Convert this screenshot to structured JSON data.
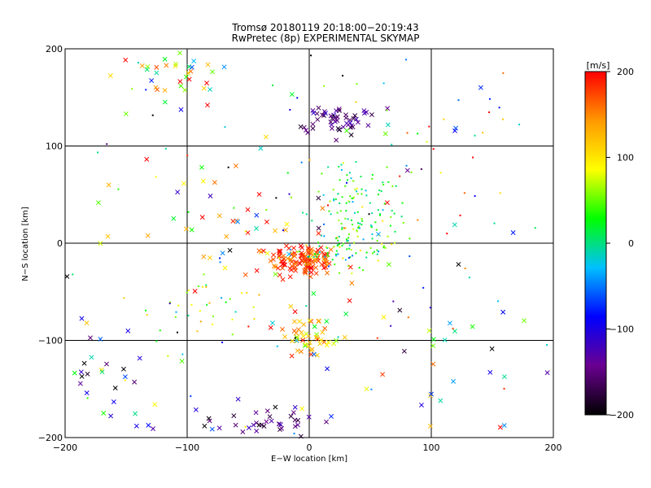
{
  "chart_data": {
    "type": "scatter",
    "title": [
      "Tromsø 20180119 20:18:00−20:19:43",
      "RwPretec (8p) EXPERIMENTAL SKYMAP"
    ],
    "xlabel": "E−W location [km]",
    "ylabel": "N−S location [km]",
    "xlim": [
      -200,
      200
    ],
    "ylim": [
      -200,
      200
    ],
    "xticks": [
      -200,
      -100,
      0,
      100,
      200
    ],
    "yticks": [
      -200,
      -100,
      0,
      100,
      200
    ],
    "xtick_labels": [
      "−200",
      "−100",
      "0",
      "100",
      "200"
    ],
    "ytick_labels": [
      "−200",
      "−100",
      "0",
      "100",
      "200"
    ],
    "grid": true,
    "color_by": "velocity",
    "colorbar": {
      "label": "[m/s]",
      "range": [
        -200,
        200
      ],
      "ticks": [
        -200,
        -100,
        0,
        100,
        200
      ],
      "tick_labels": [
        "−200",
        "−100",
        "0",
        "100",
        "200"
      ],
      "colors": [
        "#000000",
        "#6a0090",
        "#0000ff",
        "#00c0ff",
        "#00ff00",
        "#ffff00",
        "#ff9900",
        "#ff0000"
      ]
    },
    "marker_types": [
      "cross",
      "dot"
    ],
    "clusters": [
      {
        "center": [
          -5,
          -18
        ],
        "spread": [
          14,
          9
        ],
        "count": 130,
        "v_mean": 180,
        "v_spread": 30,
        "marker": "cross"
      },
      {
        "center": [
          30,
          -5
        ],
        "spread": [
          22,
          12
        ],
        "count": 90,
        "v_mean": 30,
        "v_spread": 40,
        "marker": "dot"
      },
      {
        "center": [
          40,
          40
        ],
        "spread": [
          20,
          22
        ],
        "count": 110,
        "v_mean": 20,
        "v_spread": 30,
        "marker": "dot"
      },
      {
        "center": [
          22,
          128
        ],
        "spread": [
          14,
          8
        ],
        "count": 55,
        "v_mean": -150,
        "v_spread": 20,
        "marker": "cross"
      },
      {
        "center": [
          0,
          -95
        ],
        "spread": [
          10,
          10
        ],
        "count": 50,
        "v_mean": 120,
        "v_spread": 40,
        "marker": "cross"
      },
      {
        "center": [
          -40,
          -185
        ],
        "spread": [
          22,
          12
        ],
        "count": 40,
        "v_mean": -160,
        "v_spread": 30,
        "marker": "cross"
      },
      {
        "center": [
          -110,
          175
        ],
        "spread": [
          25,
          18
        ],
        "count": 40,
        "v_mean": 100,
        "v_spread": 100,
        "marker": "cross"
      },
      {
        "center": [
          -90,
          -65
        ],
        "spread": [
          20,
          20
        ],
        "count": 35,
        "v_mean": 50,
        "v_spread": 60,
        "marker": "dot"
      },
      {
        "center": [
          -60,
          15
        ],
        "spread": [
          40,
          40
        ],
        "count": 35,
        "v_mean": 120,
        "v_spread": 80,
        "marker": "cross"
      },
      {
        "center": [
          -160,
          -130
        ],
        "spread": [
          25,
          30
        ],
        "count": 30,
        "v_mean": -80,
        "v_spread": 100,
        "marker": "cross"
      },
      {
        "center": [
          120,
          120
        ],
        "spread": [
          50,
          40
        ],
        "count": 20,
        "v_mean": 100,
        "v_spread": 100,
        "marker": "dot"
      },
      {
        "center": [
          110,
          -100
        ],
        "spread": [
          50,
          50
        ],
        "count": 20,
        "v_mean": -50,
        "v_spread": 120,
        "marker": "cross"
      },
      {
        "center": [
          0,
          0
        ],
        "spread": [
          120,
          120
        ],
        "count": 90,
        "v_mean": 0,
        "v_spread": 130,
        "marker": "dot"
      },
      {
        "center": [
          0,
          0
        ],
        "spread": [
          120,
          120
        ],
        "count": 60,
        "v_mean": 0,
        "v_spread": 130,
        "marker": "cross"
      }
    ]
  }
}
